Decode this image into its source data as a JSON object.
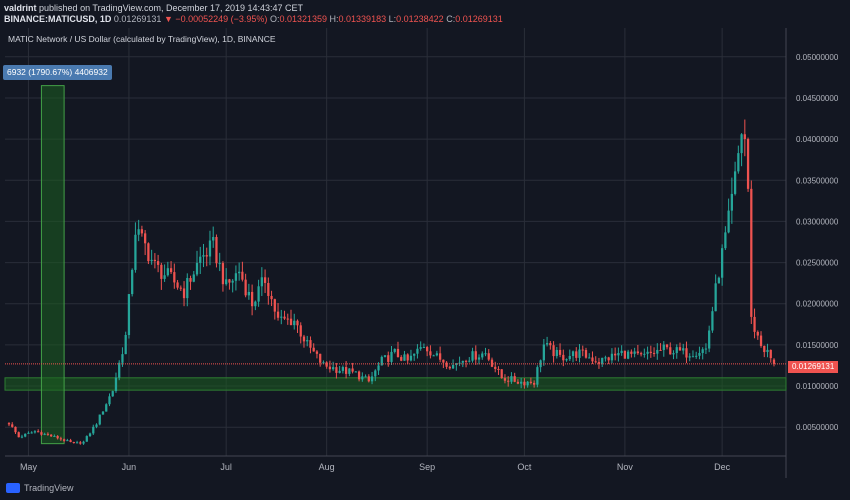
{
  "header": {
    "author": "valdrint",
    "published_text": "published on TradingView.com, December 17, 2019 14:43:47 CET",
    "symbol": "BINANCE:MATICUSD, 1D",
    "last": "0.01269131",
    "change": "▼ −0.00052249 (−3.95%)",
    "open_label": "O:",
    "open": "0.01321359",
    "high_label": "H:",
    "high": "0.01339183",
    "low_label": "L:",
    "low": "0.01238422",
    "close_label": "C:",
    "close": "0.01269131"
  },
  "chart_title": "MATIC Network / US Dollar (calculated by TradingView), 1D, BINANCE",
  "measure_label": "6932 (1790.67%) 4406932",
  "price_tag": "0.01269131",
  "footer": {
    "brand": "TradingView"
  },
  "colors": {
    "background": "#131722",
    "grid": "#2a2e39",
    "up": "#26a69a",
    "down": "#ef5350",
    "support_zone": "#1b5e20",
    "measure_box": "#1b5e20"
  },
  "chart_data": {
    "type": "candlestick",
    "x_ticks": [
      "May",
      "Jun",
      "Jul",
      "Aug",
      "Sep",
      "Oct",
      "Nov",
      "Dec"
    ],
    "y_ticks": [
      "0.00500000",
      "0.01000000",
      "0.01500000",
      "0.02000000",
      "0.02500000",
      "0.03000000",
      "0.03500000",
      "0.04000000",
      "0.04500000",
      "0.05000000"
    ],
    "ylim": [
      0.0015,
      0.0535
    ],
    "start_date": "2019-04-25",
    "end_date": "2019-12-17",
    "last_price": 0.01269131,
    "support_zone": [
      0.0095,
      0.011
    ],
    "close_path": [
      [
        "2019-04-25",
        0.0055
      ],
      [
        "2019-04-28",
        0.0038
      ],
      [
        "2019-05-03",
        0.0045
      ],
      [
        "2019-05-10",
        0.0037
      ],
      [
        "2019-05-15",
        0.003
      ],
      [
        "2019-05-18",
        0.0032
      ],
      [
        "2019-05-22",
        0.0055
      ],
      [
        "2019-05-27",
        0.0095
      ],
      [
        "2019-05-31",
        0.016
      ],
      [
        "2019-06-03",
        0.029
      ],
      [
        "2019-06-06",
        0.027
      ],
      [
        "2019-06-09",
        0.0245
      ],
      [
        "2019-06-14",
        0.023
      ],
      [
        "2019-06-18",
        0.0215
      ],
      [
        "2019-06-23",
        0.0255
      ],
      [
        "2019-06-27",
        0.027
      ],
      [
        "2019-07-01",
        0.022
      ],
      [
        "2019-07-05",
        0.024
      ],
      [
        "2019-07-09",
        0.02
      ],
      [
        "2019-07-13",
        0.023
      ],
      [
        "2019-07-17",
        0.018
      ],
      [
        "2019-07-22",
        0.018
      ],
      [
        "2019-07-26",
        0.015
      ],
      [
        "2019-07-31",
        0.0125
      ],
      [
        "2019-08-05",
        0.012
      ],
      [
        "2019-08-10",
        0.0115
      ],
      [
        "2019-08-14",
        0.0105
      ],
      [
        "2019-08-18",
        0.013
      ],
      [
        "2019-08-22",
        0.014
      ],
      [
        "2019-08-26",
        0.013
      ],
      [
        "2019-08-31",
        0.015
      ],
      [
        "2019-09-04",
        0.0135
      ],
      [
        "2019-09-09",
        0.0125
      ],
      [
        "2019-09-13",
        0.0135
      ],
      [
        "2019-09-19",
        0.014
      ],
      [
        "2019-09-24",
        0.011
      ],
      [
        "2019-09-30",
        0.0105
      ],
      [
        "2019-10-04",
        0.0105
      ],
      [
        "2019-10-07",
        0.015
      ],
      [
        "2019-10-12",
        0.0135
      ],
      [
        "2019-10-18",
        0.014
      ],
      [
        "2019-10-24",
        0.013
      ],
      [
        "2019-10-31",
        0.014
      ],
      [
        "2019-11-06",
        0.0135
      ],
      [
        "2019-11-13",
        0.0145
      ],
      [
        "2019-11-20",
        0.014
      ],
      [
        "2019-11-26",
        0.0145
      ],
      [
        "2019-11-30",
        0.024
      ],
      [
        "2019-12-03",
        0.03
      ],
      [
        "2019-12-05",
        0.035
      ],
      [
        "2019-12-07",
        0.041
      ],
      [
        "2019-12-08",
        0.04
      ],
      [
        "2019-12-09",
        0.034
      ],
      [
        "2019-12-10",
        0.018
      ],
      [
        "2019-12-11",
        0.017
      ],
      [
        "2019-12-13",
        0.015
      ],
      [
        "2019-12-15",
        0.014
      ],
      [
        "2019-12-17",
        0.01269131
      ]
    ]
  }
}
